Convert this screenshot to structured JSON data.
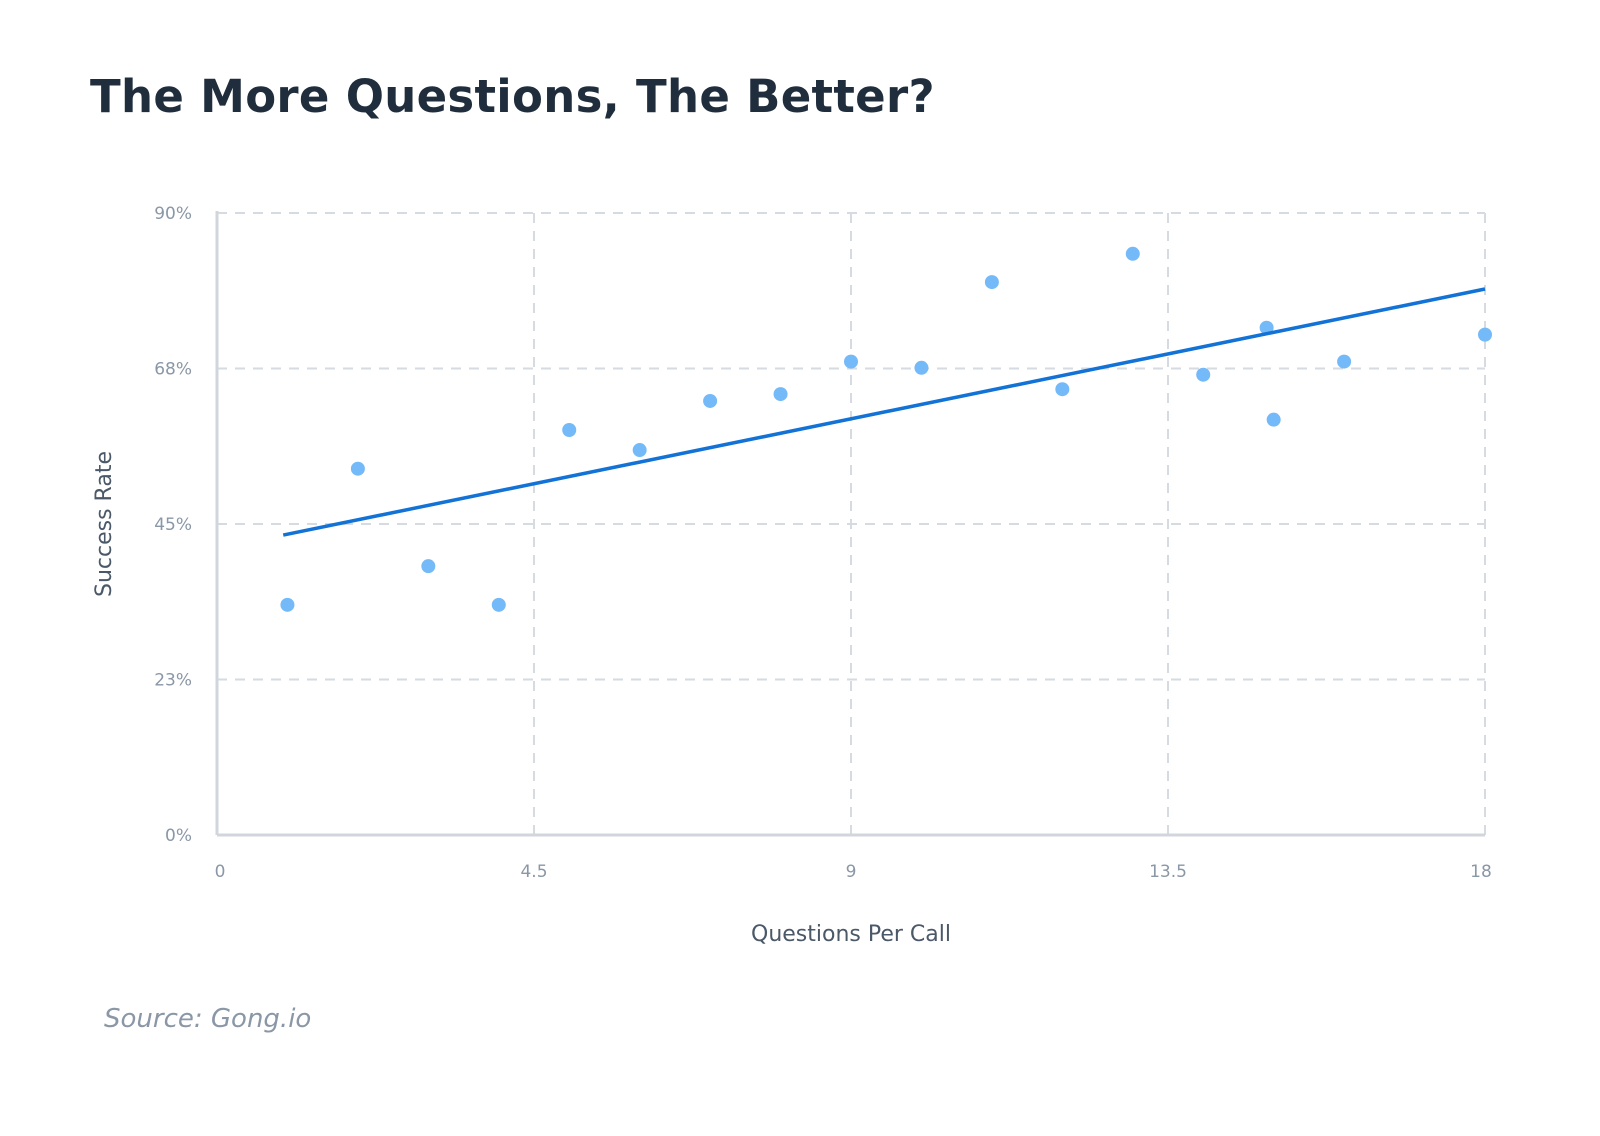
{
  "chart_data": {
    "type": "scatter",
    "title": "The More Questions, The Better?",
    "source": "Source: Gong.io",
    "xlabel": "Questions Per Call",
    "ylabel": "Success Rate",
    "xlim": [
      0,
      18
    ],
    "ylim": [
      0,
      90
    ],
    "x_ticks": [
      0,
      4.5,
      9,
      13.5,
      18
    ],
    "x_tick_labels": [
      "0",
      "4.5",
      "9",
      "13.5",
      "18"
    ],
    "y_ticks": [
      0,
      22.5,
      45,
      67.5,
      90
    ],
    "y_tick_labels": [
      "0%",
      "23%",
      "45%",
      "68%",
      "90%"
    ],
    "grid": true,
    "points": [
      {
        "x": 1,
        "y": 33.3
      },
      {
        "x": 2,
        "y": 53
      },
      {
        "x": 3,
        "y": 38.9
      },
      {
        "x": 4,
        "y": 33.3
      },
      {
        "x": 5,
        "y": 58.6
      },
      {
        "x": 6,
        "y": 55.7
      },
      {
        "x": 7,
        "y": 62.8
      },
      {
        "x": 8,
        "y": 63.8
      },
      {
        "x": 9,
        "y": 68.5
      },
      {
        "x": 10,
        "y": 67.6
      },
      {
        "x": 11,
        "y": 80
      },
      {
        "x": 12,
        "y": 64.5
      },
      {
        "x": 13,
        "y": 84.1
      },
      {
        "x": 14,
        "y": 66.6
      },
      {
        "x": 14.9,
        "y": 73.4
      },
      {
        "x": 15,
        "y": 60.1
      },
      {
        "x": 16,
        "y": 68.5
      },
      {
        "x": 18,
        "y": 72.4
      }
    ],
    "trendline": {
      "x": [
        0.94,
        18
      ],
      "y": [
        43.4,
        79.0
      ]
    },
    "colors": {
      "points": "#74b9f8",
      "trendline": "#1272d6",
      "grid": "#d5dbe1",
      "axis": "#d0d6dc",
      "title": "#1f2d3d"
    }
  }
}
